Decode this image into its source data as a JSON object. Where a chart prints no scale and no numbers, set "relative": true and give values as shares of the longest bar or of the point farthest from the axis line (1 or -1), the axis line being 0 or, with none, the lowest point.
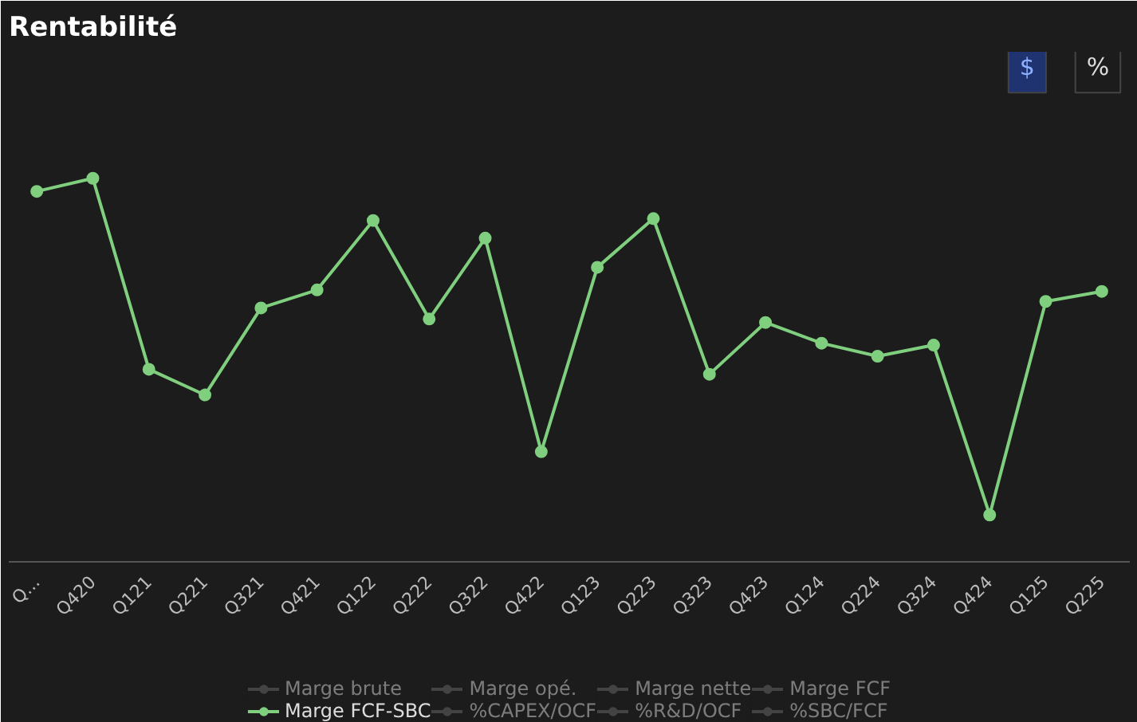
{
  "chart_data": {
    "type": "line",
    "title": "Rentabilité",
    "relative": true,
    "marker": "circle",
    "grid": false,
    "legend": "bottom",
    "annotations": [
      "$",
      "%"
    ],
    "categories": [
      "Q...",
      "Q420",
      "Q121",
      "Q221",
      "Q321",
      "Q421",
      "Q122",
      "Q222",
      "Q322",
      "Q422",
      "Q123",
      "Q223",
      "Q323",
      "Q423",
      "Q124",
      "Q224",
      "Q324",
      "Q424",
      "Q125",
      "Q225"
    ],
    "series": [
      {
        "name": "Marge brute",
        "color": "#6b6b6b",
        "values": [
          null,
          null,
          null,
          null,
          null,
          null,
          null,
          null,
          null,
          null,
          null,
          null,
          null,
          null,
          null,
          null,
          null,
          null,
          null,
          null
        ]
      },
      {
        "name": "Marge opé.",
        "color": "#6b6b6b",
        "values": [
          null,
          null,
          null,
          null,
          null,
          null,
          null,
          null,
          null,
          null,
          null,
          null,
          null,
          null,
          null,
          null,
          null,
          null,
          null,
          null
        ]
      },
      {
        "name": "Marge nette",
        "color": "#6b6b6b",
        "values": [
          null,
          null,
          null,
          null,
          null,
          null,
          null,
          null,
          null,
          null,
          null,
          null,
          null,
          null,
          null,
          null,
          null,
          null,
          null,
          null
        ]
      },
      {
        "name": "Marge FCF",
        "color": "#6b6b6b",
        "values": [
          null,
          null,
          null,
          null,
          null,
          null,
          null,
          null,
          null,
          null,
          null,
          null,
          null,
          null,
          null,
          null,
          null,
          null,
          null,
          null
        ]
      },
      {
        "name": "Marge FCF-SBC",
        "color": "#7fcf7f",
        "values": [
          0.966,
          1,
          0.502,
          0.435,
          0.662,
          0.709,
          0.89,
          0.633,
          0.844,
          0.287,
          0.768,
          0.895,
          0.489,
          0.624,
          0.57,
          0.536,
          0.565,
          0.122,
          0.679,
          0.705
        ]
      },
      {
        "name": "%CAPEX/OCF",
        "color": "#6b6b6b",
        "values": [
          null,
          null,
          null,
          null,
          null,
          null,
          null,
          null,
          null,
          null,
          null,
          null,
          null,
          null,
          null,
          null,
          null,
          null,
          null,
          null
        ]
      },
      {
        "name": "%R&D/OCF",
        "color": "#6b6b6b",
        "values": [
          null,
          null,
          null,
          null,
          null,
          null,
          null,
          null,
          null,
          null,
          null,
          null,
          null,
          null,
          null,
          null,
          null,
          null,
          null,
          null
        ]
      },
      {
        "name": "%SBC/FCF",
        "color": "#6b6b6b",
        "values": [
          null,
          null,
          null,
          null,
          null,
          null,
          null,
          null,
          null,
          null,
          null,
          null,
          null,
          null,
          null,
          null,
          null,
          null,
          null,
          null
        ]
      }
    ]
  }
}
